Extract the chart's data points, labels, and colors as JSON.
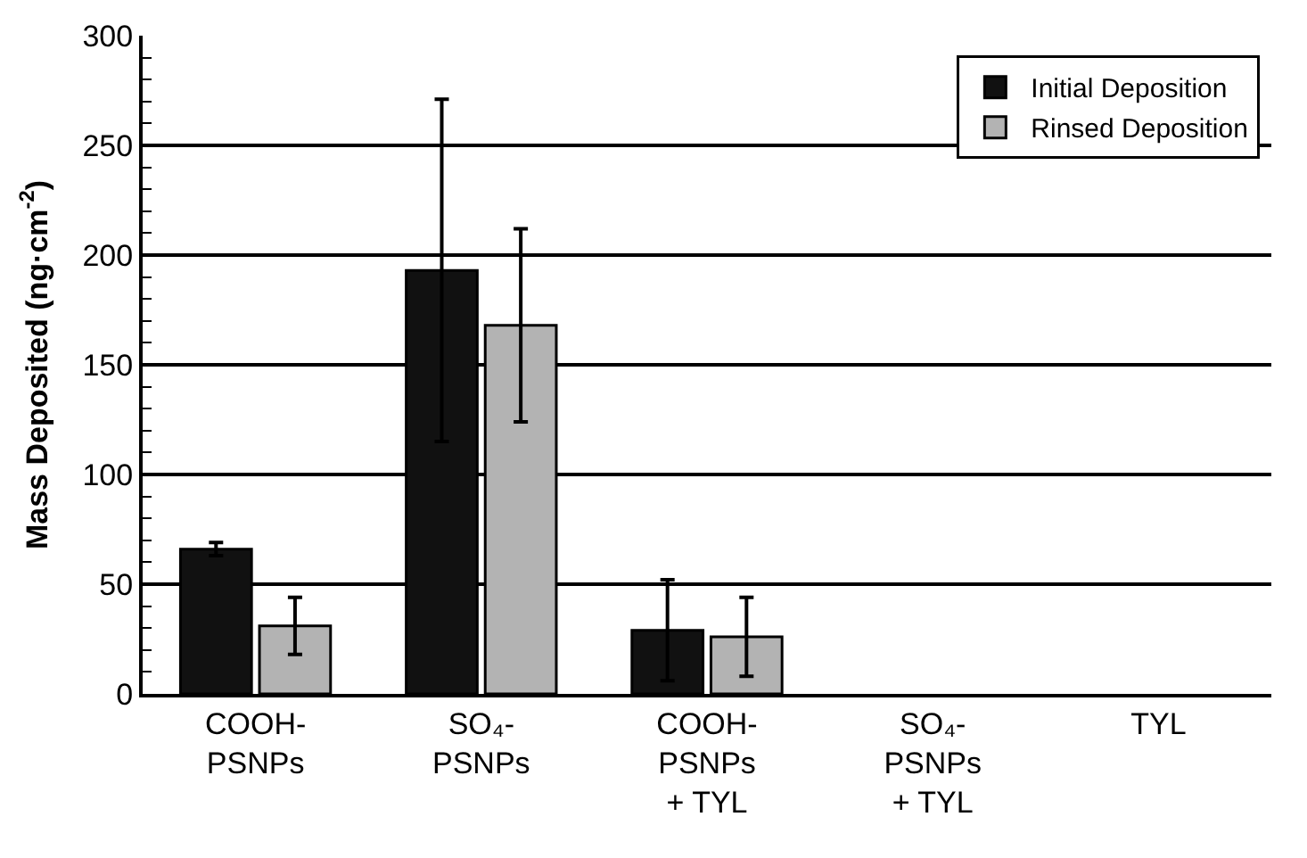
{
  "chart_data": {
    "type": "bar",
    "ylabel": "Mass Deposited (ng·cm$^{-2}$)",
    "categories": [
      "COOH-\nPSNPs",
      "SO₄-\nPSNPs",
      "COOH-\nPSNPs\n+ TYL",
      "SO₄-\nPSNPs\n+ TYL",
      "TYL"
    ],
    "series": [
      {
        "name": "Initial Deposition",
        "color": "#111111",
        "values": [
          66,
          193,
          29,
          null,
          null
        ],
        "errors": [
          3,
          78,
          23,
          null,
          null
        ]
      },
      {
        "name": "Rinsed Deposition",
        "color": "#b3b3b3",
        "values": [
          31,
          168,
          26,
          null,
          null
        ],
        "errors": [
          13,
          44,
          18,
          null,
          null
        ]
      }
    ],
    "ylim": [
      0,
      300
    ],
    "yticks": [
      0,
      {
        "value": 10,
        "label": null
      },
      {
        "value": 20,
        "label": null
      },
      {
        "value": 30,
        "label": null
      },
      {
        "value": 40,
        "label": null
      },
      50,
      {
        "value": 60,
        "label": null
      },
      {
        "value": 70,
        "label": null
      },
      {
        "value": 80,
        "label": null
      },
      {
        "value": 90,
        "label": null
      },
      100,
      {
        "value": 110,
        "label": null
      },
      {
        "value": 120,
        "label": null
      },
      {
        "value": 130,
        "label": null
      },
      {
        "value": 140,
        "label": null
      },
      150,
      {
        "value": 160,
        "label": null
      },
      {
        "value": 170,
        "label": null
      },
      {
        "value": 180,
        "label": null
      },
      {
        "value": 190,
        "label": null
      },
      200,
      {
        "value": 210,
        "label": null
      },
      {
        "value": 220,
        "label": null
      },
      {
        "value": 230,
        "label": null
      },
      {
        "value": 240,
        "label": null
      },
      250,
      {
        "value": 260,
        "label": null
      },
      {
        "value": 270,
        "label": null
      },
      {
        "value": 280,
        "label": null
      },
      {
        "value": 290,
        "label": null
      },
      300
    ],
    "grid": "y",
    "legend": "top right"
  }
}
